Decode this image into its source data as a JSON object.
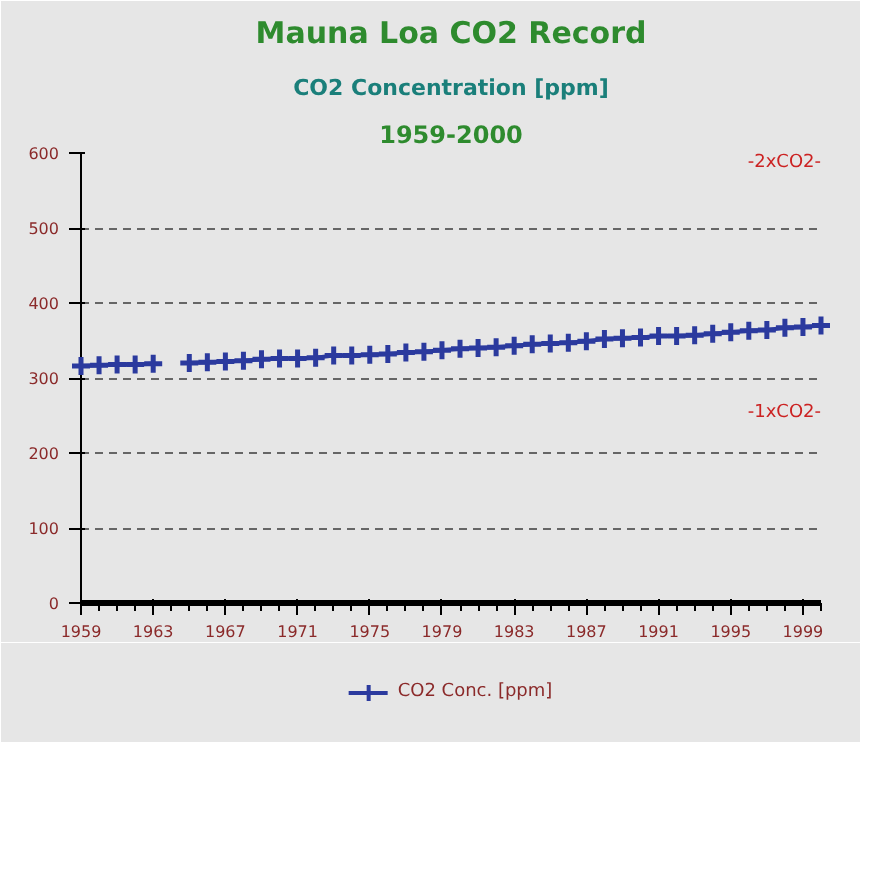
{
  "chart_data": {
    "type": "line",
    "title": "Mauna Loa CO2 Record",
    "subtitle": "CO2 Concentration [ppm]",
    "annotations": [
      "1959-2000",
      "-2xCO2-",
      "-1xCO2-"
    ],
    "x": [
      1959,
      1960,
      1961,
      1962,
      1963,
      1964,
      1965,
      1966,
      1967,
      1968,
      1969,
      1970,
      1971,
      1972,
      1973,
      1974,
      1975,
      1976,
      1977,
      1978,
      1979,
      1980,
      1981,
      1982,
      1983,
      1984,
      1985,
      1986,
      1987,
      1988,
      1989,
      1990,
      1991,
      1992,
      1993,
      1994,
      1995,
      1996,
      1997,
      1998,
      1999,
      2000
    ],
    "series": [
      {
        "name": "CO2 Conc. [ppm]",
        "color": "#2b3a9e",
        "values": [
          316,
          317,
          318,
          318,
          319,
          null,
          320,
          321,
          322,
          323,
          325,
          326,
          326,
          327,
          330,
          330,
          331,
          332,
          334,
          335,
          337,
          339,
          340,
          341,
          343,
          345,
          346,
          347,
          349,
          352,
          353,
          354,
          356,
          356,
          357,
          359,
          361,
          363,
          364,
          367,
          368,
          370
        ]
      }
    ],
    "xlim": [
      1959,
      2000
    ],
    "xticks": [
      1959,
      1963,
      1967,
      1971,
      1975,
      1979,
      1983,
      1987,
      1991,
      1995,
      1999
    ],
    "ylim": [
      0,
      600
    ],
    "yticks": [
      0,
      100,
      200,
      300,
      400,
      500,
      600
    ],
    "grid": "y",
    "legend": "bottom",
    "marker": "cross",
    "line_style": "solid"
  }
}
